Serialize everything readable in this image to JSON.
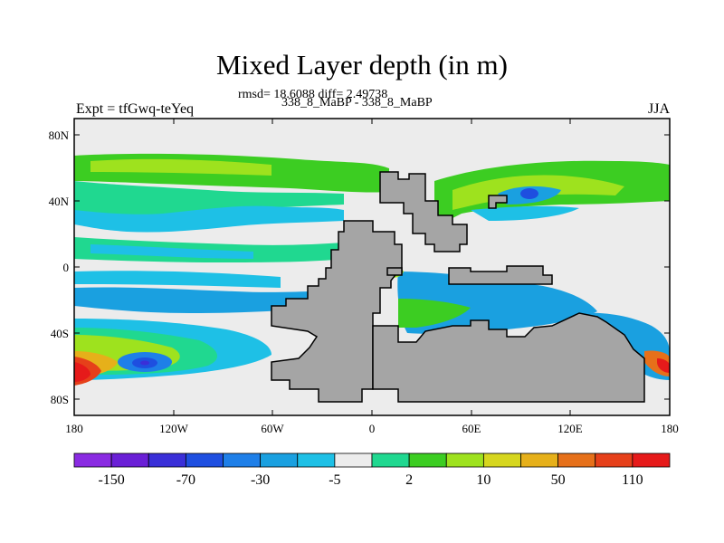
{
  "title": "Mixed Layer depth (in m)",
  "stats": "rmsd= 18.6088 diff= 2.49738",
  "experiment": "Expt = tfGwq-teYeq",
  "comparison": "338_8_MaBP - 338_8_MaBP",
  "season": "JJA",
  "lat_ticks": [
    "80N",
    "40N",
    "0",
    "40S",
    "80S"
  ],
  "lon_ticks": [
    "180",
    "120W",
    "60W",
    "0",
    "60E",
    "120E",
    "180"
  ],
  "colorbar": {
    "colors": [
      "#8a2be2",
      "#6a1fd6",
      "#3a2fd8",
      "#1e4fe0",
      "#1e7fe8",
      "#1aa0e0",
      "#1ec0e6",
      "#ececec",
      "#20d890",
      "#3ccd22",
      "#9ee21e",
      "#d6d61e",
      "#e6b01a",
      "#e6701a",
      "#e6401a",
      "#e61a1a"
    ],
    "labels": [
      "-150",
      "-70",
      "-30",
      "-5",
      "2",
      "10",
      "50",
      "110"
    ]
  },
  "map": {
    "land_color": "#a5a5a5",
    "ocean_neutral_color": "#ececec",
    "lat_range": [
      -90,
      90
    ],
    "lon_range": [
      -180,
      180
    ]
  }
}
